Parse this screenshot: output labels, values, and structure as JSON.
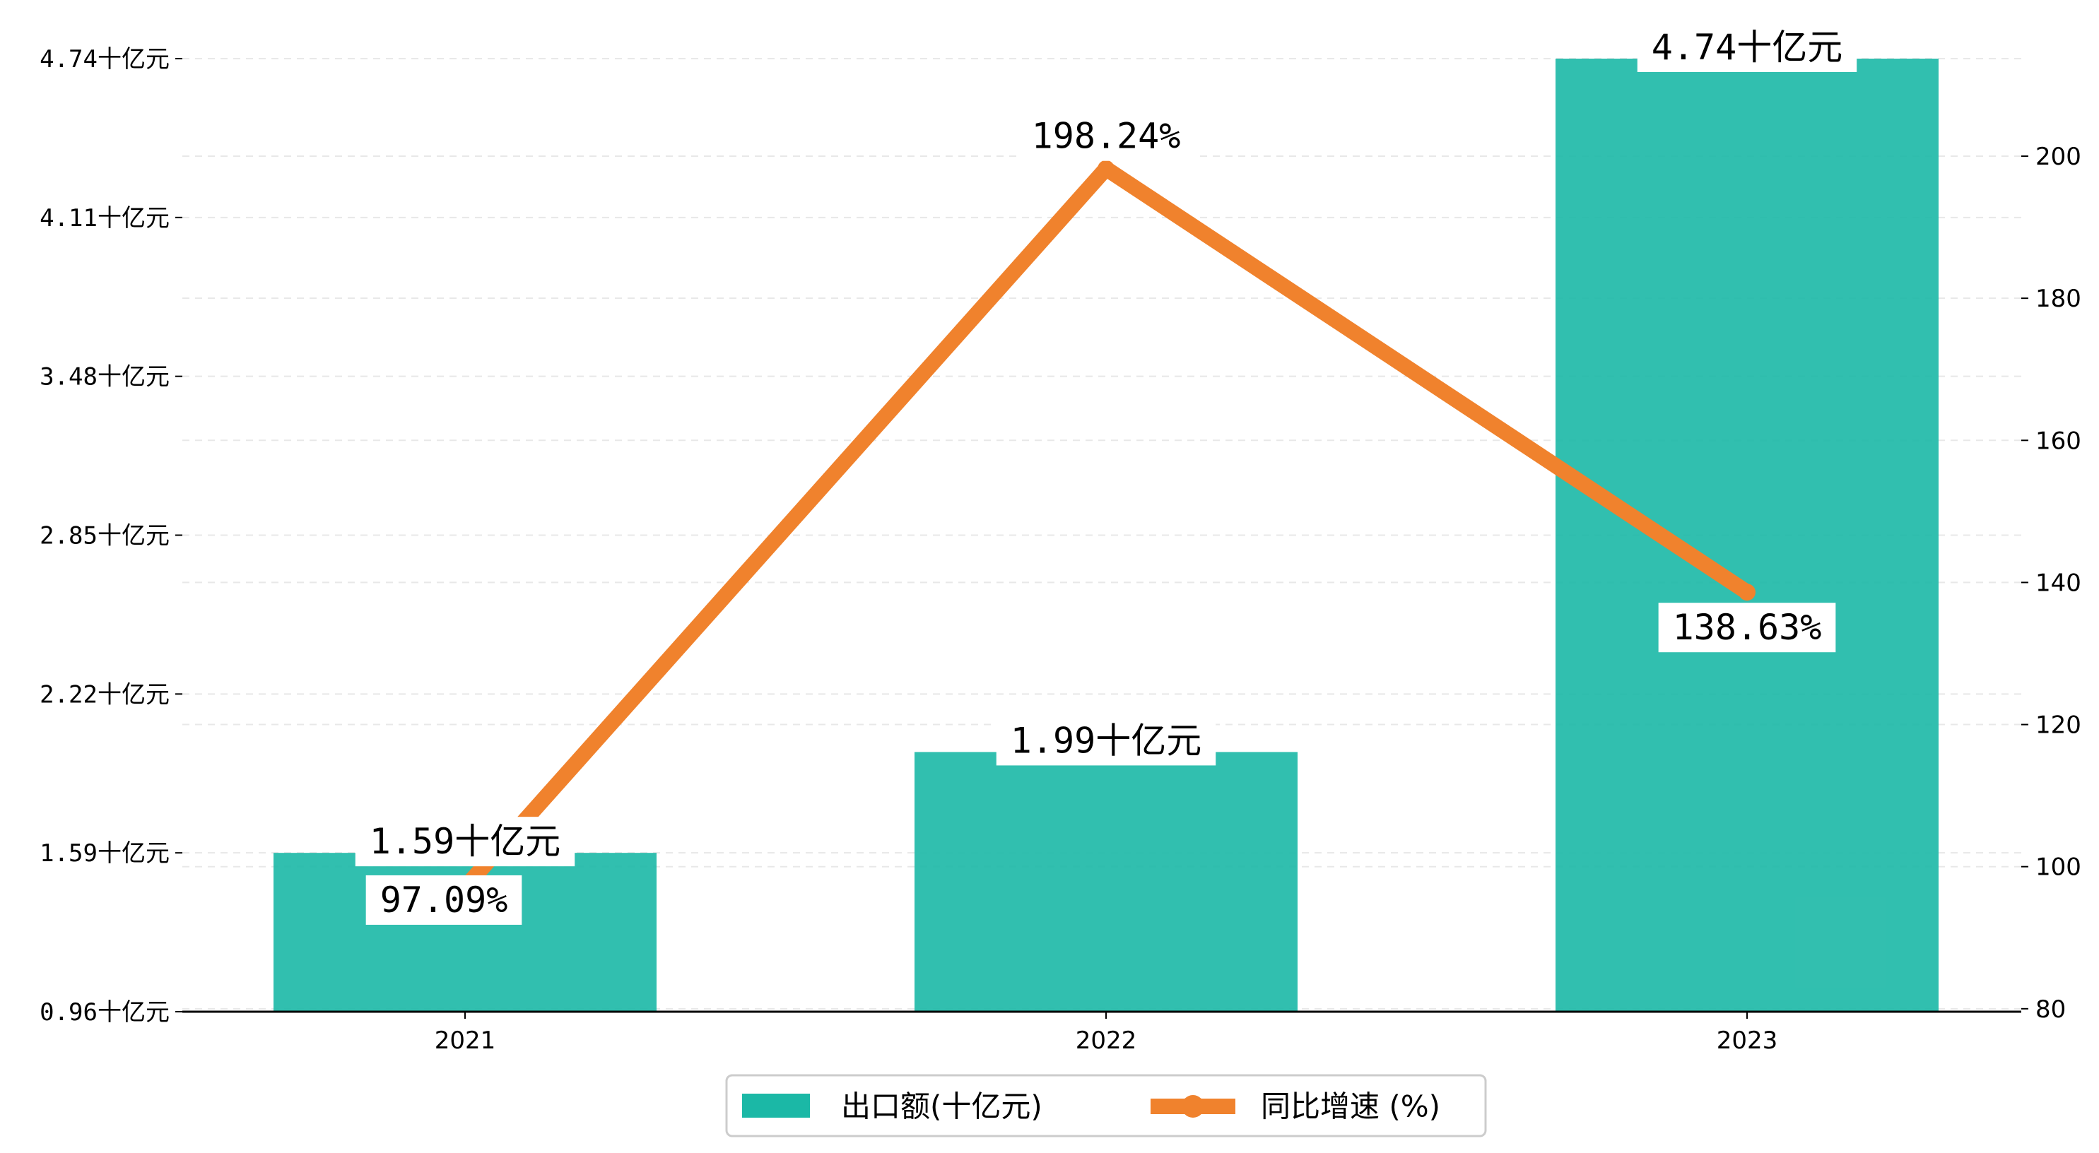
{
  "chart_data": {
    "type": "bar+line",
    "categories": [
      "2021",
      "2022",
      "2023"
    ],
    "series": [
      {
        "name": "出口额(十亿元)",
        "type": "bar",
        "axis": "left",
        "values": [
          1.59,
          1.99,
          4.74
        ],
        "labels": [
          "1.59十亿元",
          "1.99十亿元",
          "4.74十亿元"
        ],
        "color": "#1BB8A6"
      },
      {
        "name": "同比增速 (%)",
        "type": "line",
        "axis": "right",
        "values": [
          97.09,
          198.24,
          138.63
        ],
        "labels": [
          "97.09%",
          "198.24%",
          "138.63%"
        ],
        "color": "#F0822D"
      }
    ],
    "left_axis": {
      "ylim": [
        0.96,
        4.74
      ],
      "ticks": [
        0.96,
        1.59,
        2.22,
        2.85,
        3.48,
        4.11,
        4.74
      ],
      "tick_labels": [
        "0.96十亿元",
        "1.59十亿元",
        "2.22十亿元",
        "2.85十亿元",
        "3.48十亿元",
        "4.11十亿元",
        "4.74十亿元"
      ]
    },
    "right_axis": {
      "ylim": [
        77,
        218
      ],
      "ticks": [
        80,
        100,
        120,
        140,
        160,
        180,
        200
      ],
      "tick_labels": [
        "80",
        "100",
        "120",
        "140",
        "160",
        "180",
        "200"
      ]
    },
    "grid": true,
    "legend_position": "bottom-center"
  }
}
